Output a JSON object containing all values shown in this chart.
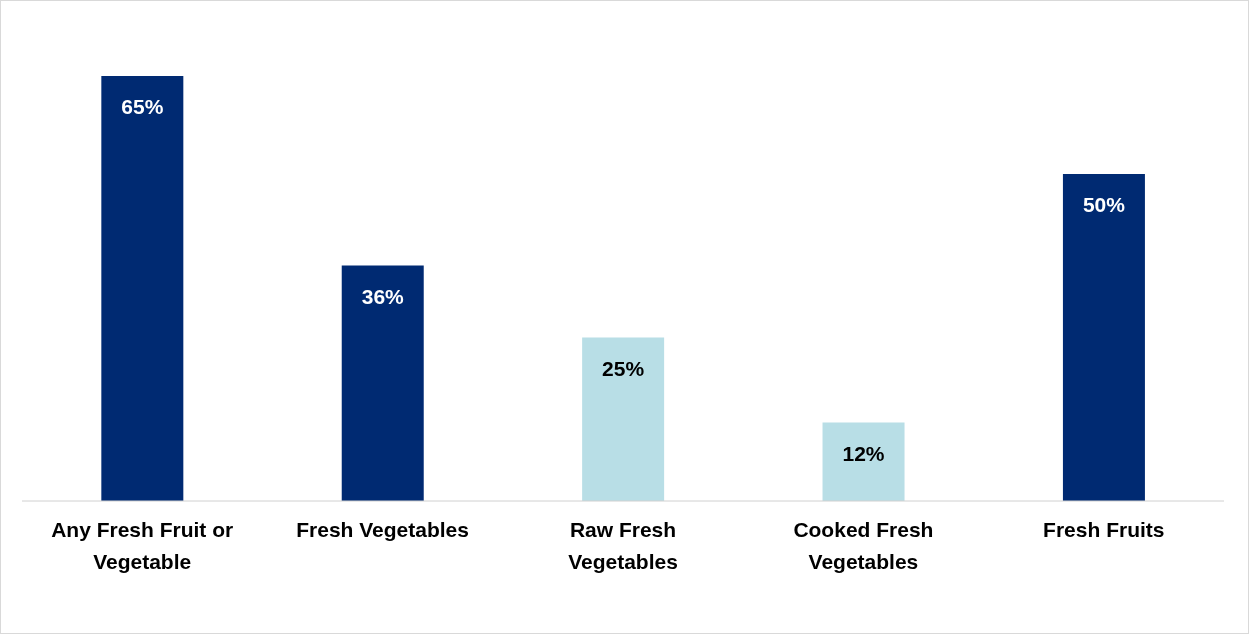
{
  "chart_data": {
    "type": "bar",
    "categories": [
      "Any Fresh Fruit or Vegetable",
      "Fresh Vegetables",
      "Raw Fresh Vegetables",
      "Cooked Fresh Vegetables",
      "Fresh Fruits"
    ],
    "values": [
      65,
      36,
      25,
      12,
      50
    ],
    "colors": [
      "#002a72",
      "#002a72",
      "#b8dee6",
      "#b8dee6",
      "#002a72"
    ],
    "value_labels": [
      "65%",
      "36%",
      "25%",
      "12%",
      "50%"
    ]
  }
}
